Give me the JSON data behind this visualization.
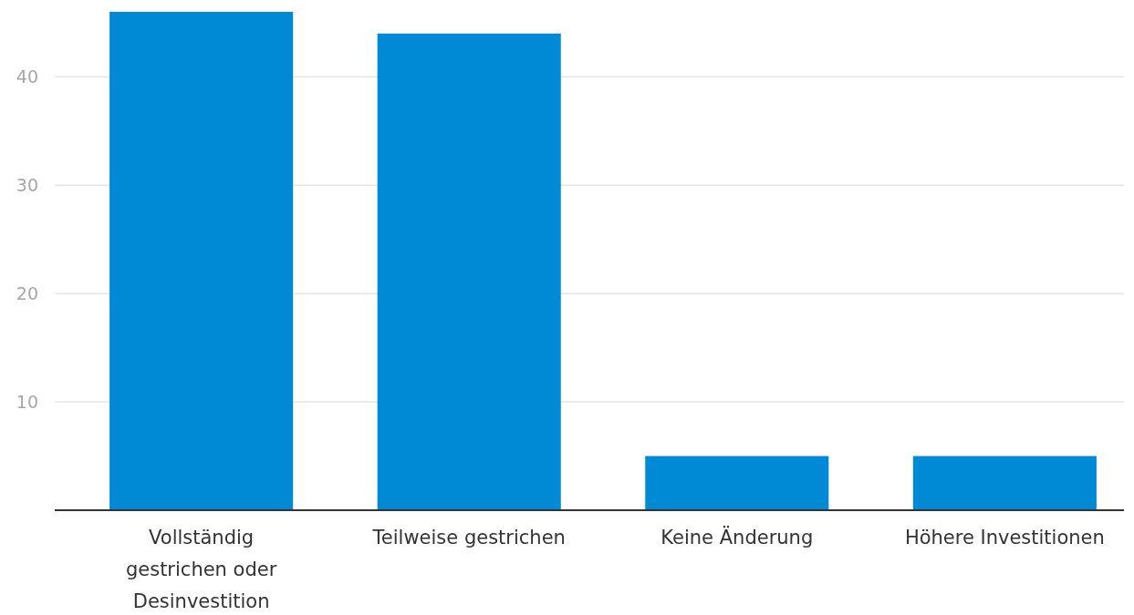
{
  "chart_data": {
    "type": "bar",
    "categories": [
      "Vollständig gestrichen oder Desinvestition",
      "Teilweise gestrichen",
      "Keine Änderung",
      "Höhere Investitionen"
    ],
    "values": [
      46,
      44,
      5,
      5
    ],
    "color": "#008ad6",
    "ylim": [
      0,
      46
    ],
    "yticks": [
      10,
      20,
      30,
      40
    ],
    "grid": "y"
  }
}
